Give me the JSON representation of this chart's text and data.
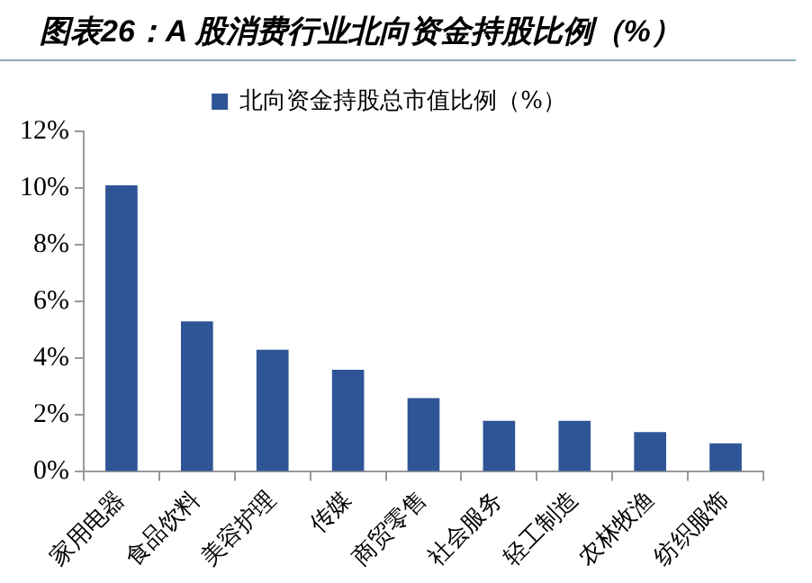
{
  "chart_data": {
    "type": "bar",
    "title": "图表26：A 股消费行业北向资金持股比例（%）",
    "categories": [
      "家用电器",
      "食品饮料",
      "美容护理",
      "传媒",
      "商贸零售",
      "社会服务",
      "轻工制造",
      "农林牧渔",
      "纺织服饰"
    ],
    "series": [
      {
        "name": "北向资金持股总市值比例（%）",
        "color": "#2f5597",
        "values": [
          10.1,
          5.3,
          4.3,
          3.6,
          2.6,
          1.8,
          1.8,
          1.4,
          1.0
        ]
      }
    ],
    "ylim": [
      0,
      12
    ],
    "yticks": [
      {
        "value": 0,
        "label": "0%"
      },
      {
        "value": 2,
        "label": "2%"
      },
      {
        "value": 4,
        "label": "4%"
      },
      {
        "value": 6,
        "label": "6%"
      },
      {
        "value": 8,
        "label": "8%"
      },
      {
        "value": 10,
        "label": "10%"
      },
      {
        "value": 12,
        "label": "12%"
      }
    ],
    "grid": false,
    "legend": "top"
  }
}
